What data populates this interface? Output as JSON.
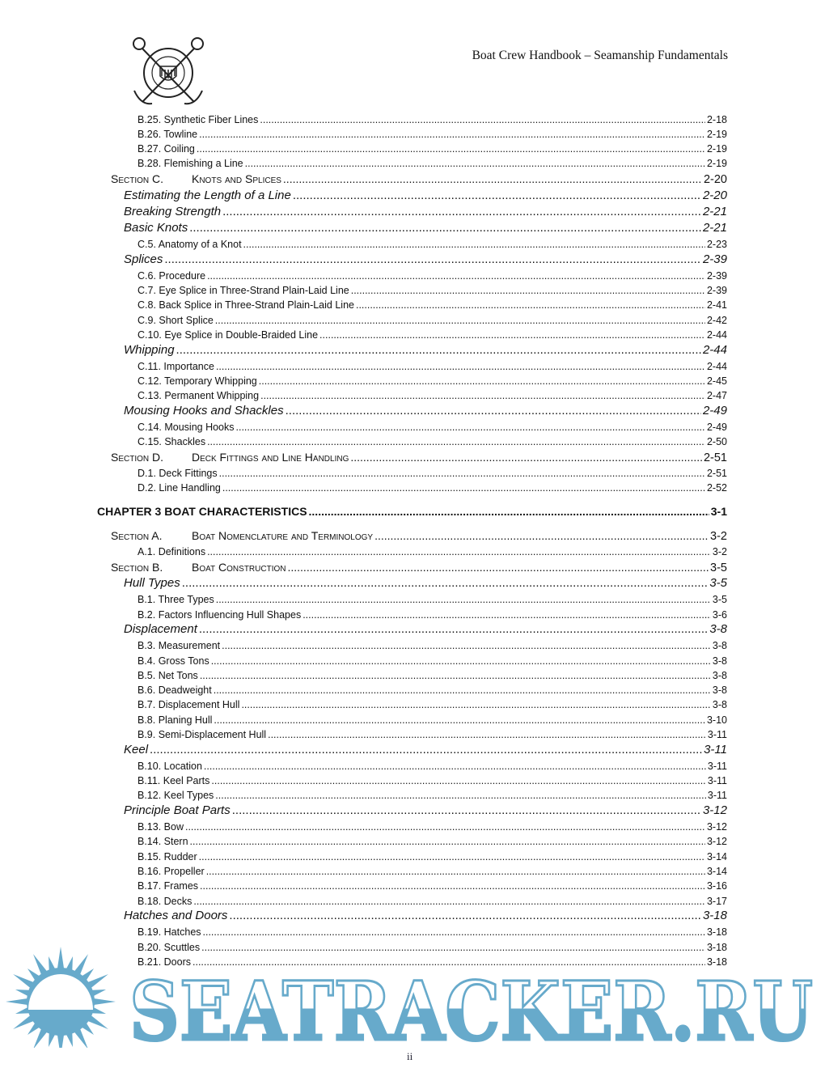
{
  "header": {
    "title": "Boat Crew Handbook – Seamanship Fundamentals",
    "logo_text": "UNITED STATES COAST GUARD 1790"
  },
  "toc": [
    {
      "level": "l3",
      "text": "B.25. Synthetic Fiber Lines",
      "page": "2-18"
    },
    {
      "level": "l3",
      "text": "B.26. Towline",
      "page": "2-19"
    },
    {
      "level": "l3",
      "text": "B.27. Coiling",
      "page": "2-19"
    },
    {
      "level": "l3",
      "text": "B.28. Flemishing a Line",
      "page": "2-19"
    },
    {
      "level": "sec",
      "label": "Section C.",
      "text": "Knots and Splices",
      "page": "2-20"
    },
    {
      "level": "l2",
      "text": "Estimating the Length of a Line",
      "page": "2-20"
    },
    {
      "level": "l2",
      "text": "Breaking Strength",
      "page": "2-21"
    },
    {
      "level": "l2",
      "text": "Basic Knots",
      "page": "2-21"
    },
    {
      "level": "l3",
      "text": "C.5. Anatomy of a Knot",
      "page": "2-23"
    },
    {
      "level": "l2",
      "text": "Splices",
      "page": "2-39"
    },
    {
      "level": "l3",
      "text": "C.6. Procedure",
      "page": "2-39"
    },
    {
      "level": "l3",
      "text": "C.7. Eye Splice in Three-Strand Plain-Laid Line",
      "page": "2-39"
    },
    {
      "level": "l3",
      "text": "C.8. Back Splice in Three-Strand Plain-Laid Line",
      "page": "2-41"
    },
    {
      "level": "l3",
      "text": "C.9. Short Splice",
      "page": "2-42"
    },
    {
      "level": "l3",
      "text": "C.10. Eye Splice in Double-Braided Line",
      "page": "2-44"
    },
    {
      "level": "l2",
      "text": "Whipping",
      "page": "2-44"
    },
    {
      "level": "l3",
      "text": "C.11. Importance",
      "page": "2-44"
    },
    {
      "level": "l3",
      "text": "C.12. Temporary Whipping",
      "page": "2-45"
    },
    {
      "level": "l3",
      "text": "C.13. Permanent Whipping",
      "page": "2-47"
    },
    {
      "level": "l2",
      "text": "Mousing Hooks and Shackles",
      "page": "2-49"
    },
    {
      "level": "l3",
      "text": "C.14. Mousing Hooks",
      "page": "2-49"
    },
    {
      "level": "l3",
      "text": "C.15. Shackles",
      "page": "2-50"
    },
    {
      "level": "sec",
      "label": "Section D.",
      "text": "Deck Fittings and Line Handling",
      "page": "2-51"
    },
    {
      "level": "l3",
      "text": "D.1. Deck Fittings",
      "page": "2-51"
    },
    {
      "level": "l3",
      "text": "D.2. Line Handling",
      "page": "2-52"
    },
    {
      "level": "ch",
      "text": "CHAPTER 3 BOAT CHARACTERISTICS",
      "page": "3-1"
    },
    {
      "level": "sec",
      "label": "Section A.",
      "text": "Boat Nomenclature and Terminology",
      "page": "3-2"
    },
    {
      "level": "l3",
      "text": "A.1. Definitions",
      "page": "3-2"
    },
    {
      "level": "sec",
      "label": "Section B.",
      "text": "Boat Construction",
      "page": "3-5"
    },
    {
      "level": "l2",
      "text": "Hull Types",
      "page": "3-5"
    },
    {
      "level": "l3",
      "text": "B.1. Three Types",
      "page": "3-5"
    },
    {
      "level": "l3",
      "text": "B.2. Factors Influencing Hull Shapes",
      "page": "3-6"
    },
    {
      "level": "l2",
      "text": "Displacement",
      "page": "3-8"
    },
    {
      "level": "l3",
      "text": "B.3. Measurement",
      "page": "3-8"
    },
    {
      "level": "l3",
      "text": "B.4. Gross Tons",
      "page": "3-8"
    },
    {
      "level": "l3",
      "text": "B.5. Net Tons",
      "page": "3-8"
    },
    {
      "level": "l3",
      "text": "B.6. Deadweight",
      "page": "3-8"
    },
    {
      "level": "l3",
      "text": "B.7. Displacement Hull",
      "page": "3-8"
    },
    {
      "level": "l3",
      "text": "B.8. Planing Hull",
      "page": "3-10"
    },
    {
      "level": "l3",
      "text": "B.9. Semi-Displacement Hull",
      "page": "3-11"
    },
    {
      "level": "l2",
      "text": "Keel",
      "page": "3-11"
    },
    {
      "level": "l3",
      "text": "B.10. Location",
      "page": "3-11"
    },
    {
      "level": "l3",
      "text": "B.11. Keel Parts",
      "page": "3-11"
    },
    {
      "level": "l3",
      "text": "B.12. Keel Types",
      "page": "3-11"
    },
    {
      "level": "l2",
      "text": "Principle Boat Parts",
      "page": "3-12"
    },
    {
      "level": "l3",
      "text": "B.13. Bow",
      "page": "3-12"
    },
    {
      "level": "l3",
      "text": "B.14. Stern",
      "page": "3-12"
    },
    {
      "level": "l3",
      "text": "B.15. Rudder",
      "page": "3-14"
    },
    {
      "level": "l3",
      "text": "B.16. Propeller",
      "page": "3-14"
    },
    {
      "level": "l3",
      "text": "B.17. Frames",
      "page": "3-16"
    },
    {
      "level": "l3",
      "text": "B.18. Decks",
      "page": "3-17"
    },
    {
      "level": "l2",
      "text": "Hatches and Doors",
      "page": "3-18"
    },
    {
      "level": "l3",
      "text": "B.19. Hatches",
      "page": "3-18"
    },
    {
      "level": "l3",
      "text": "B.20. Scuttles",
      "page": "3-18"
    },
    {
      "level": "l3",
      "text": "B.21. Doors",
      "page": "3-18"
    }
  ],
  "footer": {
    "page_number": "ii"
  },
  "watermark": {
    "text": "SEATRACKER.RU",
    "color": "#67aacb"
  }
}
